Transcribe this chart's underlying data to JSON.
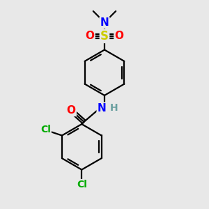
{
  "bg_color": "#e8e8e8",
  "bond_color": "#000000",
  "bond_width": 1.6,
  "atom_colors": {
    "N": "#0000ff",
    "O": "#ff0000",
    "S": "#cccc00",
    "Cl": "#00aa00",
    "H": "#6aa0a0"
  },
  "font_size": 10,
  "fig_size": [
    3.0,
    3.0
  ],
  "dpi": 100
}
